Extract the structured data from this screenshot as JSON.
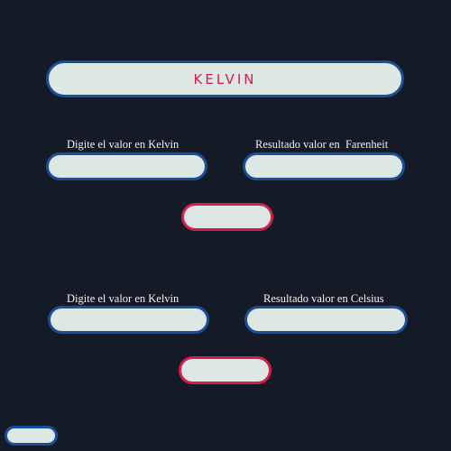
{
  "header": {
    "title": "KELVIN"
  },
  "section1": {
    "input_label": "Digite el valor en Kelvin",
    "output_label": "Resultado valor en  Farenheit",
    "input_value": "",
    "output_value": "",
    "button_label": ""
  },
  "section2": {
    "input_label": "Digite el valor en Kelvin",
    "output_label": "Resultado valor en Celsius",
    "input_value": "",
    "output_value": "",
    "button_label": ""
  },
  "footer": {
    "button_label": ""
  },
  "colors": {
    "background": "#141b27",
    "pill_fill": "#dde8e5",
    "border_blue": "#1a4e9a",
    "accent_red": "#d31d4c"
  }
}
